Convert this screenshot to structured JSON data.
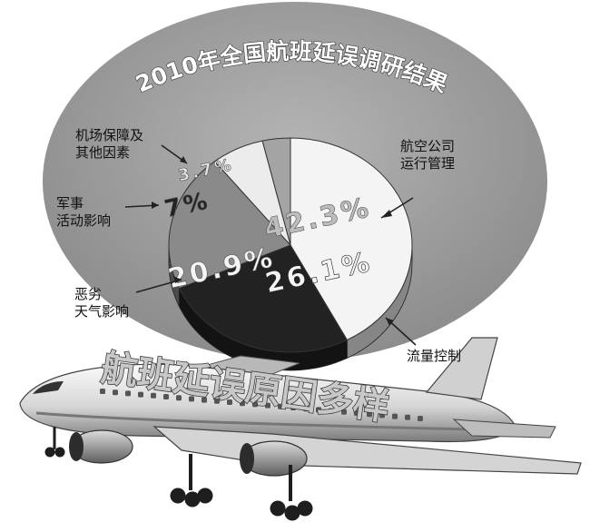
{
  "chart_data": {
    "type": "pie",
    "title": "2010年全国航班延误调研结果",
    "slices": [
      {
        "label": "航空公司运行管理",
        "label_lines": [
          "航空公司",
          "运行管理"
        ],
        "value": 42.3,
        "value_label": "42.3%",
        "color": "#f4f4f4"
      },
      {
        "label": "流量控制",
        "label_lines": [
          "流量控制"
        ],
        "value": 26.1,
        "value_label": "26.1%",
        "color": "#222222"
      },
      {
        "label": "恶劣天气影响",
        "label_lines": [
          "恶劣",
          "天气影响"
        ],
        "value": 20.9,
        "value_label": "20.9%",
        "color": "#8a8a8a"
      },
      {
        "label": "军事活动影响",
        "label_lines": [
          "军事",
          "活动影响"
        ],
        "value": 7,
        "value_label": "7%",
        "color": "#ececec"
      },
      {
        "label": "机场保障及其他因素",
        "label_lines": [
          "机场保障及",
          "其他因素"
        ],
        "value": 3.7,
        "value_label": "3.7%",
        "color": "#a4a4a4"
      }
    ]
  },
  "banner": {
    "text": "航班延误原因多样"
  }
}
